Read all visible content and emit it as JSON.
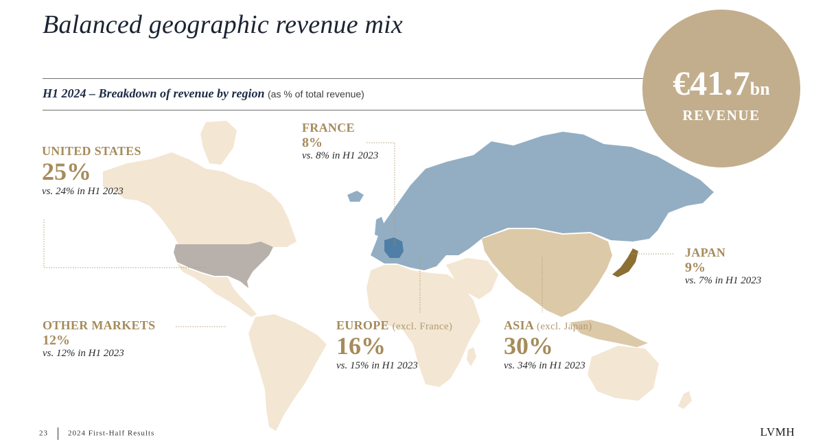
{
  "title": "Balanced geographic revenue mix",
  "subtitle": {
    "main": "H1 2024 – Breakdown of revenue by region",
    "note": "(as % of total revenue)"
  },
  "badge": {
    "amount": "€41.7",
    "unit": "bn",
    "label": "REVENUE"
  },
  "regions": {
    "united_states": {
      "name": "UNITED STATES",
      "pct": "25%",
      "cmp": "vs. 24% in H1 2023"
    },
    "france": {
      "name": "FRANCE",
      "pct": "8%",
      "cmp": "vs. 8% in H1 2023"
    },
    "japan": {
      "name": "JAPAN",
      "pct": "9%",
      "cmp": "vs. 7% in H1 2023"
    },
    "other_markets": {
      "name": "OTHER MARKETS",
      "pct": "12%",
      "cmp": "vs. 12% in H1 2023"
    },
    "europe": {
      "name": "EUROPE",
      "excl": "(excl. France)",
      "pct": "16%",
      "cmp": "vs. 15% in H1 2023"
    },
    "asia": {
      "name": "ASIA",
      "excl": "(excl. Japan)",
      "pct": "30%",
      "cmp": "vs. 34% in H1 2023"
    }
  },
  "colors": {
    "other_land": "#f3e6d3",
    "united_states": "#b8b1ab",
    "europe": "#93aec3",
    "france": "#4f7ea6",
    "asia": "#dcc9a8",
    "japan": "#8d6f34",
    "accent": "#a68b5b"
  },
  "footer": {
    "page": "23",
    "doc": "2024 First-Half Results"
  },
  "logo": "LVMH"
}
